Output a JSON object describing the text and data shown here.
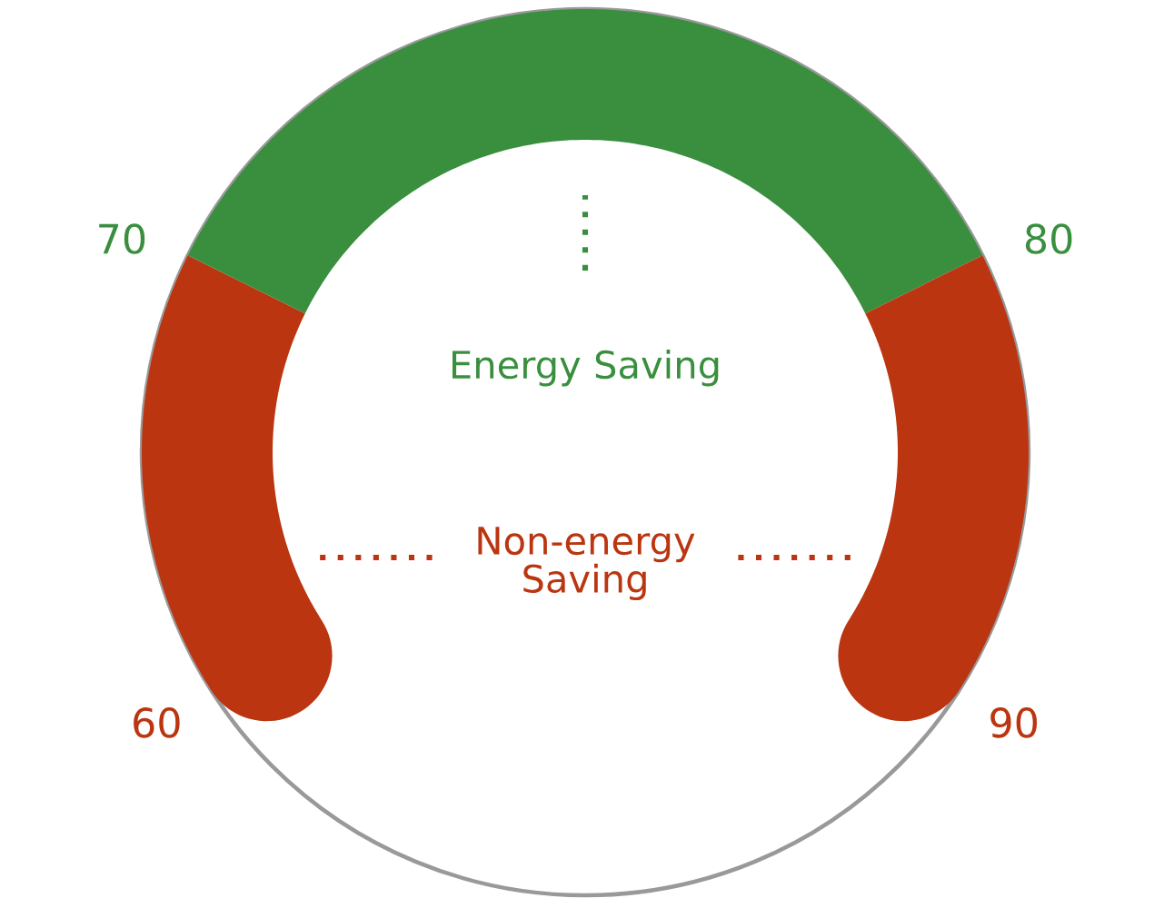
{
  "chart_data": {
    "type": "donut",
    "categories": [
      "Non-energy\nSaving",
      "Energy Saving",
      null
    ],
    "values": [
      25.6,
      48.8,
      25.6
    ],
    "colors": [
      "#bb3510",
      "#3a8f3f",
      "#bb3510"
    ],
    "annotations": [
      "60",
      "70",
      "80",
      "90"
    ]
  }
}
